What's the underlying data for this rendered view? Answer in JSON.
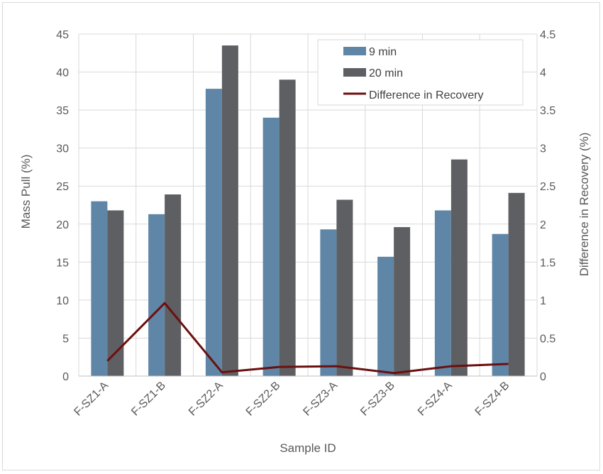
{
  "chart_data": {
    "type": "bar",
    "categories": [
      "F-SZ1-A",
      "F-SZ1-B",
      "F-SZ2-A",
      "F-SZ2-B",
      "F-SZ3-A",
      "F-SZ3-B",
      "F-SZ4-A",
      "F-SZ4-B"
    ],
    "series": [
      {
        "name": "9 min",
        "type": "bar",
        "axis": "left",
        "color": "#5f86a6",
        "values": [
          23.0,
          21.3,
          37.8,
          34.0,
          19.3,
          15.7,
          21.8,
          18.7
        ]
      },
      {
        "name": "20 min",
        "type": "bar",
        "axis": "left",
        "color": "#5e5f63",
        "values": [
          21.8,
          23.9,
          43.5,
          39.0,
          23.2,
          19.6,
          28.5,
          24.1
        ]
      },
      {
        "name": "Difference in Recovery",
        "type": "line",
        "axis": "right",
        "color": "#6b0f0f",
        "values": [
          0.2,
          0.96,
          0.05,
          0.12,
          0.13,
          0.04,
          0.13,
          0.16
        ]
      }
    ],
    "xlabel": "Sample ID",
    "ylabel": "Mass Pull (%)",
    "y2label": "Difference in Recovery (%)",
    "ylim": [
      0,
      45
    ],
    "y2lim": [
      0,
      4.5
    ],
    "yticks": [
      "0",
      "5",
      "10",
      "15",
      "20",
      "25",
      "30",
      "35",
      "40",
      "45"
    ],
    "y2ticks": [
      "0",
      "0.5",
      "1",
      "1.5",
      "2",
      "2.5",
      "3",
      "3.5",
      "4",
      "4.5"
    ],
    "grid": true,
    "legend_position": "top-right"
  }
}
